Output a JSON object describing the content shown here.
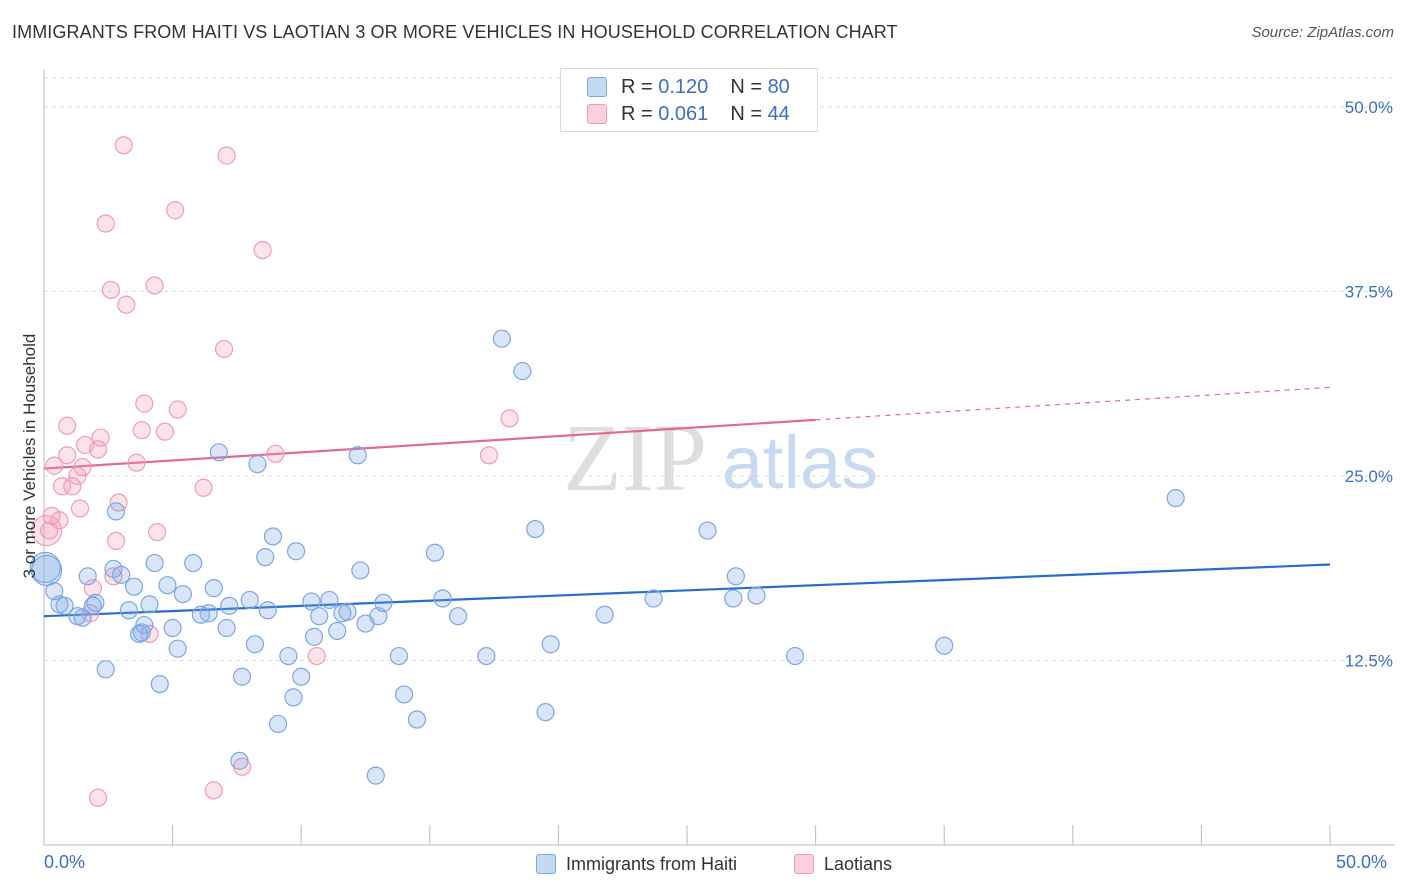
{
  "title": "IMMIGRANTS FROM HAITI VS LAOTIAN 3 OR MORE VEHICLES IN HOUSEHOLD CORRELATION CHART",
  "source": "Source: ZipAtlas.com",
  "watermark": {
    "zip": "ZIP",
    "atlas": "atlas"
  },
  "legend_top": [
    {
      "r_label": "R =",
      "r_value": "0.120",
      "n_label": "N =",
      "n_value": "80"
    },
    {
      "r_label": "R =",
      "r_value": "0.061",
      "n_label": "N =",
      "n_value": "44"
    }
  ],
  "legend_bottom": [
    "Immigrants from Haiti",
    "Laotians"
  ],
  "x_tick_left": "0.0%",
  "x_tick_right": "50.0%",
  "chart_data": {
    "type": "scatter",
    "title": "IMMIGRANTS FROM HAITI VS LAOTIAN 3 OR MORE VEHICLES IN HOUSEHOLD CORRELATION CHART",
    "xlabel": "",
    "ylabel": "3 or more Vehicles in Household",
    "xlim": [
      0,
      50
    ],
    "ylim": [
      0,
      52.5
    ],
    "y_ticks": [
      12.5,
      25.0,
      37.5,
      50.0
    ],
    "y_tick_labels": [
      "12.5%",
      "25.0%",
      "37.5%",
      "50.0%"
    ],
    "x_tick_labels": [
      "0.0%",
      "50.0%"
    ],
    "grid": true,
    "colors": {
      "haiti": "#7aa7e6",
      "laotian": "#f29bb5",
      "haiti_line": "#2a6ccc",
      "laotian_line": "#e36a8f",
      "tick_text": "#3a6fc4"
    },
    "series": [
      {
        "name": "Immigrants from Haiti",
        "points": [
          [
            0.4,
            17.2
          ],
          [
            0.6,
            16.3
          ],
          [
            0.8,
            16.2
          ],
          [
            1.3,
            15.5
          ],
          [
            1.5,
            15.4
          ],
          [
            1.7,
            18.2
          ],
          [
            1.9,
            16.2
          ],
          [
            2.0,
            16.4
          ],
          [
            2.4,
            11.9
          ],
          [
            2.7,
            18.7
          ],
          [
            2.8,
            22.6
          ],
          [
            3.0,
            18.3
          ],
          [
            3.3,
            15.9
          ],
          [
            3.5,
            17.5
          ],
          [
            3.7,
            14.3
          ],
          [
            3.9,
            14.9
          ],
          [
            4.1,
            16.3
          ],
          [
            4.3,
            19.1
          ],
          [
            4.5,
            10.9
          ],
          [
            4.8,
            17.6
          ],
          [
            5.0,
            14.7
          ],
          [
            5.2,
            13.3
          ],
          [
            5.4,
            17.0
          ],
          [
            5.8,
            19.1
          ],
          [
            6.1,
            15.6
          ],
          [
            6.4,
            15.7
          ],
          [
            6.6,
            17.4
          ],
          [
            6.8,
            26.6
          ],
          [
            7.1,
            14.7
          ],
          [
            7.2,
            16.2
          ],
          [
            7.6,
            5.7
          ],
          [
            7.7,
            11.4
          ],
          [
            8.0,
            16.6
          ],
          [
            8.2,
            13.6
          ],
          [
            8.3,
            25.8
          ],
          [
            8.6,
            19.5
          ],
          [
            8.7,
            15.9
          ],
          [
            8.9,
            20.9
          ],
          [
            9.1,
            8.2
          ],
          [
            9.5,
            12.8
          ],
          [
            9.7,
            10.0
          ],
          [
            9.8,
            19.9
          ],
          [
            10.0,
            11.4
          ],
          [
            10.4,
            16.5
          ],
          [
            10.5,
            14.1
          ],
          [
            10.7,
            15.5
          ],
          [
            11.1,
            16.6
          ],
          [
            11.4,
            14.5
          ],
          [
            11.6,
            15.7
          ],
          [
            11.8,
            15.8
          ],
          [
            12.2,
            26.4
          ],
          [
            12.3,
            18.6
          ],
          [
            12.5,
            15.0
          ],
          [
            13.0,
            15.5
          ],
          [
            13.2,
            16.4
          ],
          [
            13.8,
            12.8
          ],
          [
            14.0,
            10.2
          ],
          [
            14.5,
            8.5
          ],
          [
            15.2,
            19.8
          ],
          [
            15.5,
            16.7
          ],
          [
            16.1,
            15.5
          ],
          [
            17.2,
            12.8
          ],
          [
            17.8,
            34.3
          ],
          [
            18.6,
            32.1
          ],
          [
            19.1,
            21.4
          ],
          [
            19.5,
            9.0
          ],
          [
            19.7,
            13.6
          ],
          [
            21.8,
            15.6
          ],
          [
            23.7,
            16.7
          ],
          [
            25.8,
            21.3
          ],
          [
            26.8,
            16.7
          ],
          [
            26.9,
            18.2
          ],
          [
            27.7,
            16.9
          ],
          [
            29.2,
            12.8
          ],
          [
            35.0,
            13.5
          ],
          [
            44.0,
            23.5
          ],
          [
            0.1,
            18.6
          ],
          [
            0.05,
            18.8
          ],
          [
            12.9,
            4.7
          ],
          [
            3.8,
            14.4
          ]
        ],
        "trend": {
          "x": [
            0,
            50
          ],
          "y": [
            15.5,
            19.0
          ]
        }
      },
      {
        "name": "Laotians",
        "points": [
          [
            0.2,
            21.3
          ],
          [
            0.3,
            22.3
          ],
          [
            0.4,
            25.7
          ],
          [
            0.6,
            22.0
          ],
          [
            0.7,
            24.3
          ],
          [
            0.9,
            26.4
          ],
          [
            0.9,
            28.4
          ],
          [
            1.1,
            24.3
          ],
          [
            1.3,
            25.0
          ],
          [
            1.4,
            22.8
          ],
          [
            1.5,
            25.6
          ],
          [
            1.6,
            27.1
          ],
          [
            1.8,
            15.7
          ],
          [
            1.9,
            17.4
          ],
          [
            2.1,
            26.8
          ],
          [
            2.2,
            27.6
          ],
          [
            2.4,
            42.1
          ],
          [
            2.6,
            37.6
          ],
          [
            2.7,
            18.2
          ],
          [
            2.8,
            20.6
          ],
          [
            2.9,
            23.2
          ],
          [
            3.1,
            47.4
          ],
          [
            3.2,
            36.6
          ],
          [
            3.6,
            25.9
          ],
          [
            3.8,
            28.1
          ],
          [
            3.9,
            29.9
          ],
          [
            4.1,
            14.3
          ],
          [
            4.3,
            37.9
          ],
          [
            4.4,
            21.2
          ],
          [
            4.7,
            28.0
          ],
          [
            5.1,
            43.0
          ],
          [
            5.2,
            29.5
          ],
          [
            6.2,
            24.2
          ],
          [
            6.6,
            3.7
          ],
          [
            7.0,
            33.6
          ],
          [
            7.1,
            46.7
          ],
          [
            7.7,
            5.3
          ],
          [
            8.5,
            40.3
          ],
          [
            9.0,
            26.5
          ],
          [
            10.6,
            12.8
          ],
          [
            17.3,
            26.4
          ],
          [
            18.1,
            28.9
          ],
          [
            2.1,
            3.2
          ],
          [
            0.1,
            21.3
          ]
        ],
        "trend": {
          "x": [
            0,
            30
          ],
          "y": [
            25.5,
            28.8
          ]
        },
        "trend_dashed": {
          "x": [
            30,
            50
          ],
          "y": [
            28.8,
            31.0
          ]
        }
      }
    ]
  }
}
